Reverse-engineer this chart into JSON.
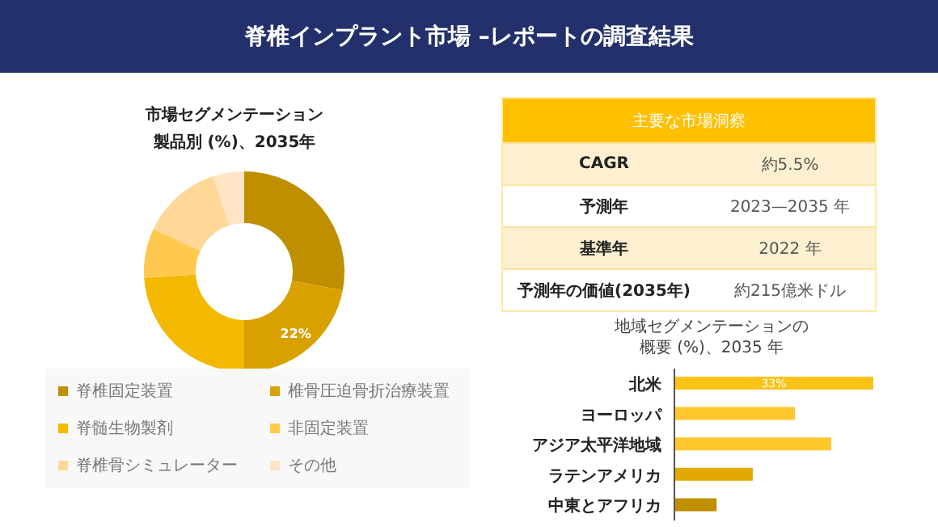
{
  "chart_data": [
    {
      "type": "other",
      "title": "脊椎インプラント市場 –レポートの調査結果"
    },
    {
      "type": "donut",
      "title": "市場セグメンテーション",
      "subtitle": "製品別 (%)、2035年",
      "categories": [
        "脊椎固定装置",
        "椎骨圧迫骨折治療装置",
        "脊髄生物製剤",
        "非固定装置",
        "脊椎骨シミュレーター",
        "その他"
      ],
      "values": [
        28,
        22,
        24,
        8,
        13,
        5
      ],
      "colors": [
        "#bf8f00",
        "#d9a100",
        "#f2b900",
        "#ffc94f",
        "#ffd899",
        "#ffe5c6"
      ],
      "value_labels": [
        null,
        "22%",
        null,
        null,
        null,
        null
      ],
      "legend": "bottom"
    },
    {
      "type": "other",
      "title": "主要な市場洞察",
      "annotations": [
        "CAGR",
        "約5.5%",
        "予測年",
        "2023—2035 年",
        "基準年",
        "2022 年",
        "予測年の価値(2035年)",
        "約215億米ドル"
      ]
    },
    {
      "type": "bar",
      "orientation": "horizontal",
      "xlim": [
        0,
        33
      ],
      "tick_labels": "y",
      "title": "地域セグメンテーションの",
      "subtitle": "概要 (%)、2035 年",
      "categories": [
        "北米",
        "ヨーロッパ",
        "アジア太平洋地域",
        "ラテンアメリカ",
        "中東とアフリカ"
      ],
      "values": [
        33,
        20,
        26,
        13,
        7
      ],
      "colors": [
        "#fcc419",
        "#ffc72c",
        "#ffc72c",
        "#e0a800",
        "#bf8f00"
      ],
      "value_labels": [
        "33%",
        null,
        null,
        null,
        null
      ]
    }
  ]
}
